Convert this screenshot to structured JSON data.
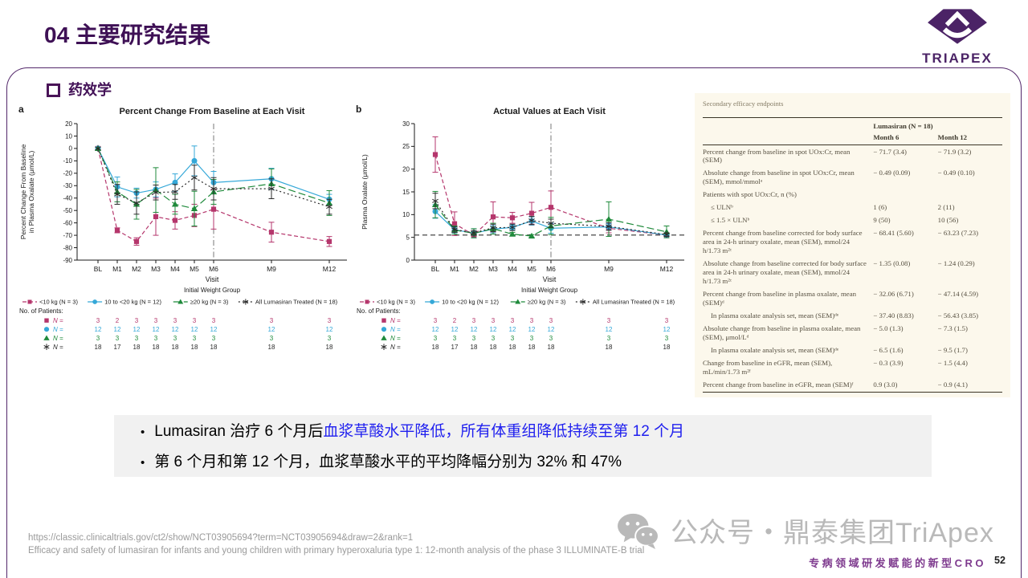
{
  "slide": {
    "title": "04 主要研究结果",
    "section": "药效学",
    "logo_text": "TRIAPEX",
    "slogan": "专病领域研发赋能的新型CRO",
    "page_number": "52",
    "watermark": "公众号・鼎泰集团TriApex",
    "footer": {
      "url": "https://classic.clinicaltrials.gov/ct2/show/NCT03905694?term=NCT03905694&draw=2&rank=1",
      "citation": "Efficacy and safety of lumasiran for infants and young children with primary hyperoxaluria type 1: 12-month analysis of the phase 3 ILLUMINATE-B trial"
    },
    "colors": {
      "accent_purple": "#3e1055",
      "slogan_purple": "#7e3a8e",
      "highlight_blue": "#1f1fef",
      "box_gray": "#f1f1f1",
      "table_cream": "#fcf8ec",
      "series_pink": "#b5366c",
      "series_blue": "#35a8d8",
      "series_green": "#1f8a3b",
      "series_black": "#2b2b2b"
    }
  },
  "bullets": [
    {
      "segments": [
        {
          "text": "Lumasiran 治疗 6 个月后",
          "color": "#000000"
        },
        {
          "text": "血浆草酸水平降低，所有体重组降低持续至第 12 个月",
          "color": "#1f1fef"
        }
      ]
    },
    {
      "segments": [
        {
          "text": "第 6 个月和第 12 个月，血浆草酸水平的平均降幅分别为 32% 和 47%",
          "color": "#000000"
        }
      ]
    }
  ],
  "chart_data": [
    {
      "id": "a",
      "corner_label": "a",
      "type": "line",
      "title": "Percent Change From Baseline at Each Visit",
      "ylabel_lines": [
        "Percent Change From Baseline",
        "in Plasma Oxalate (μmol/L)"
      ],
      "xlabel": "Visit",
      "legend_title": "Initial Weight Group",
      "categories": [
        "BL",
        "M1",
        "M2",
        "M3",
        "M4",
        "M5",
        "M6",
        "M9",
        "M12"
      ],
      "x_months": [
        0,
        1,
        2,
        3,
        4,
        5,
        6,
        9,
        12
      ],
      "ylim": [
        -90,
        20
      ],
      "ytick_step": 10,
      "vline_month": 6,
      "series": [
        {
          "name": "<10 kg (N = 3)",
          "color": "#b5366c",
          "marker": "square",
          "dash": "5,3",
          "values": [
            0,
            -66,
            -75,
            -55,
            -58,
            -54,
            -49,
            -67.5,
            -75
          ],
          "err": [
            0,
            2,
            3,
            15,
            7,
            9,
            16,
            8,
            4
          ]
        },
        {
          "name": "10 to <20 kg (N = 12)",
          "color": "#35a8d8",
          "marker": "circle",
          "dash": "",
          "values": [
            0,
            -31,
            -36,
            -33,
            -27.5,
            -10,
            -27.5,
            -24.5,
            -41
          ],
          "err": [
            0,
            8,
            4,
            6,
            7,
            12,
            9,
            8.5,
            4
          ]
        },
        {
          "name": "≥20 kg (N = 3)",
          "color": "#1f8a3b",
          "marker": "triangle",
          "dash": "9,4",
          "values": [
            0,
            -35,
            -45,
            -33.5,
            -45,
            -48.5,
            -35,
            -28.5,
            -44
          ],
          "err": [
            0,
            8,
            12,
            18,
            8,
            14,
            10,
            12,
            10
          ]
        },
        {
          "name": "All Lumasiran Treated (N = 18)",
          "color": "#2b2b2b",
          "marker": "star",
          "dash": "2,3",
          "values": [
            0,
            -37,
            -44,
            -35.5,
            -35,
            -23.5,
            -32.5,
            -32.5,
            -47
          ],
          "err": [
            0,
            8,
            9,
            6,
            6,
            10,
            9,
            8,
            6
          ]
        }
      ],
      "patients_label": "No. of Patients:",
      "patients": [
        {
          "marker": "square",
          "color": "#b5366c",
          "label": "N =",
          "counts": [
            3,
            2,
            3,
            3,
            3,
            3,
            3,
            3,
            3
          ]
        },
        {
          "marker": "circle",
          "color": "#35a8d8",
          "label": "N =",
          "counts": [
            12,
            12,
            12,
            12,
            12,
            12,
            12,
            12,
            12
          ]
        },
        {
          "marker": "triangle",
          "color": "#1f8a3b",
          "label": "N =",
          "counts": [
            3,
            3,
            3,
            3,
            3,
            3,
            3,
            3,
            3
          ]
        },
        {
          "marker": "star",
          "color": "#2b2b2b",
          "label": "N =",
          "counts": [
            18,
            17,
            18,
            18,
            18,
            18,
            18,
            18,
            18
          ]
        }
      ]
    },
    {
      "id": "b",
      "corner_label": "b",
      "type": "line",
      "title": "Actual Values at Each Visit",
      "ylabel_lines": [
        "Plasma Oxalate (μmol/L)"
      ],
      "xlabel": "Visit",
      "legend_title": "Initial Weight Group",
      "categories": [
        "BL",
        "M1",
        "M2",
        "M3",
        "M4",
        "M5",
        "M6",
        "M9",
        "M12"
      ],
      "x_months": [
        0,
        1,
        2,
        3,
        4,
        5,
        6,
        9,
        12
      ],
      "ylim": [
        0,
        30
      ],
      "ytick_step": 5,
      "vline_month": 6,
      "hline_y": 5.5,
      "series": [
        {
          "name": "<10 kg (N = 3)",
          "color": "#b5366c",
          "marker": "square",
          "dash": "5,3",
          "values": [
            23.2,
            8.0,
            5.5,
            9.5,
            9.3,
            10.3,
            11.6,
            7.0,
            5.5
          ],
          "err": [
            3.9,
            2.6,
            0.3,
            3.3,
            1.2,
            2.4,
            3.6,
            1.0,
            0.3
          ]
        },
        {
          "name": "10 to <20 kg (N = 12)",
          "color": "#35a8d8",
          "marker": "circle",
          "dash": "",
          "values": [
            10.7,
            6.7,
            5.9,
            6.8,
            7.2,
            8.6,
            7.0,
            7.3,
            5.5
          ],
          "err": [
            1.5,
            0.7,
            1.0,
            0.8,
            0.6,
            0.9,
            1.1,
            0.7,
            0.3
          ]
        },
        {
          "name": "≥20 kg (N = 3)",
          "color": "#1f8a3b",
          "marker": "triangle",
          "dash": "9,4",
          "values": [
            12.2,
            6.6,
            5.9,
            6.9,
            5.7,
            5.3,
            7.5,
            9.0,
            6.2
          ],
          "err": [
            2.9,
            0.9,
            1.0,
            1.2,
            0.4,
            0.3,
            1.9,
            3.8,
            1.3
          ]
        },
        {
          "name": "All Lumasiran Treated (N = 18)",
          "color": "#2b2b2b",
          "marker": "star",
          "dash": "2,3",
          "values": [
            13.0,
            6.7,
            6.0,
            7.1,
            7.2,
            8.7,
            8.1,
            7.4,
            5.6
          ],
          "err": [
            1.7,
            0.6,
            0.5,
            0.8,
            0.7,
            0.9,
            0.9,
            0.8,
            0.4
          ]
        }
      ],
      "patients_label": "No. of Patients:",
      "patients": [
        {
          "marker": "square",
          "color": "#b5366c",
          "label": "N =",
          "counts": [
            3,
            2,
            3,
            3,
            3,
            3,
            3,
            3,
            3
          ]
        },
        {
          "marker": "circle",
          "color": "#35a8d8",
          "label": "N =",
          "counts": [
            12,
            12,
            12,
            12,
            12,
            12,
            12,
            12,
            12
          ]
        },
        {
          "marker": "triangle",
          "color": "#1f8a3b",
          "label": "N =",
          "counts": [
            3,
            3,
            3,
            3,
            3,
            3,
            3,
            3,
            3
          ]
        },
        {
          "marker": "star",
          "color": "#2b2b2b",
          "label": "N =",
          "counts": [
            18,
            17,
            18,
            18,
            18,
            18,
            18,
            18,
            18
          ]
        }
      ]
    }
  ],
  "table": {
    "caption": "Secondary efficacy endpoints",
    "group_header": "Lumasiran (N = 18)",
    "col_headers": [
      "Month 6",
      "Month 12"
    ],
    "rows": [
      {
        "label": "Percent change from baseline in spot UOx:Cr, mean (SEM)",
        "indent": 0,
        "m6": "− 71.7 (3.4)",
        "m12": "− 71.9 (3.2)"
      },
      {
        "label": "Absolute change from baseline in spot UOx:Cr, mean (SEM), mmol/mmolᵃ",
        "indent": 0,
        "m6": "− 0.49 (0.09)",
        "m12": "− 0.49 (0.10)"
      },
      {
        "label": "Patients with spot UOx:Cr, n (%)",
        "indent": 0,
        "m6": "",
        "m12": ""
      },
      {
        "label": "≤ ULNᵇ",
        "indent": 1,
        "m6": "1 (6)",
        "m12": "2 (11)"
      },
      {
        "label": "≤ 1.5 × ULNᵇ",
        "indent": 1,
        "m6": "9 (50)",
        "m12": "10 (56)"
      },
      {
        "label": "Percent change from baseline corrected for body surface area in 24-h urinary oxalate, mean (SEM), mmol/24 h/1.73 m²ᶜ",
        "indent": 0,
        "m6": "− 68.41 (5.60)",
        "m12": "− 63.23 (7.23)"
      },
      {
        "label": "Absolute change from baseline corrected for body surface area in 24-h urinary oxalate, mean (SEM), mmol/24 h/1.73 m²ᶜ",
        "indent": 0,
        "m6": "− 1.35 (0.08)",
        "m12": "− 1.24 (0.29)"
      },
      {
        "label": "Percent change from baseline in plasma oxalate, mean (SEM)ᵈ",
        "indent": 0,
        "m6": "− 32.06 (6.71)",
        "m12": "− 47.14 (4.59)"
      },
      {
        "label": "In plasma oxalate analysis set, mean (SEM)ᵈᵉ",
        "indent": 1,
        "m6": "− 37.40 (8.83)",
        "m12": "− 56.43 (3.85)"
      },
      {
        "label": "Absolute change from baseline in plasma oxalate, mean (SEM), μmol/Lᵈ",
        "indent": 0,
        "m6": "− 5.0 (1.3)",
        "m12": "− 7.3 (1.5)"
      },
      {
        "label": "In plasma oxalate analysis set, mean (SEM)ᵈᵉ",
        "indent": 1,
        "m6": "− 6.5 (1.6)",
        "m12": "− 9.5 (1.7)"
      },
      {
        "label": "Change from baseline in eGFR, mean (SEM), mL/min/1.73 m²ᶠ",
        "indent": 0,
        "m6": "− 0.3 (3.9)",
        "m12": "− 1.5 (4.4)"
      },
      {
        "label": "Percent change from baseline in eGFR, mean (SEM)ᶠ",
        "indent": 0,
        "m6": "0.9 (3.0)",
        "m12": "− 0.9 (4.1)"
      }
    ]
  }
}
